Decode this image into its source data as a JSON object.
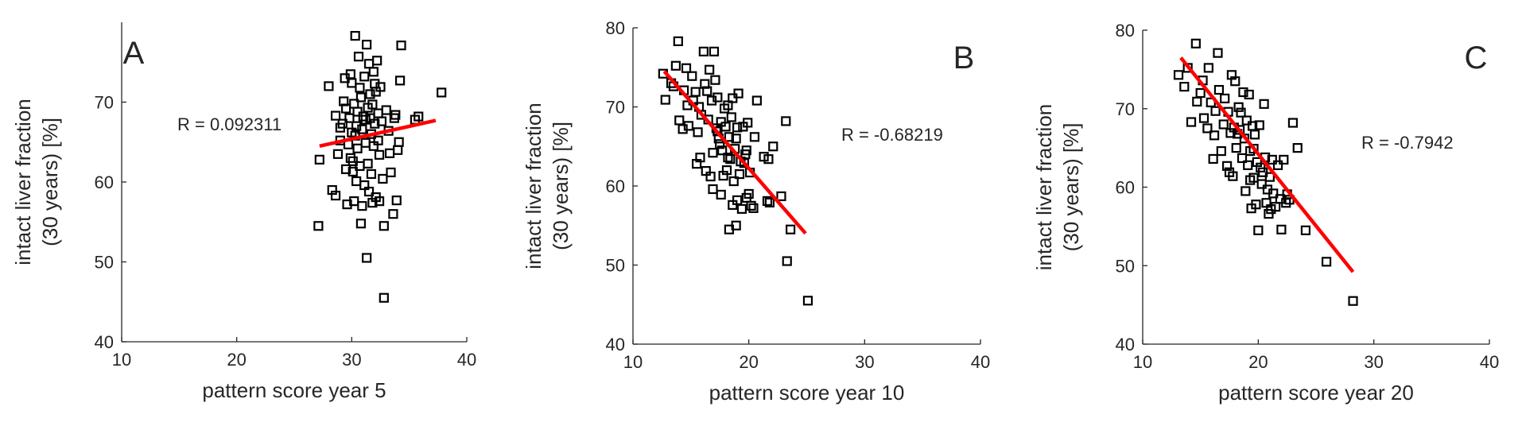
{
  "chart_data": [
    {
      "type": "scatter",
      "panel_label": "A",
      "xlabel": "pattern score year 5",
      "ylabel": [
        "intact liver fraction",
        "(30 years) [%]"
      ],
      "xlim": [
        10,
        40
      ],
      "ylim": [
        40,
        80
      ],
      "xticks": [
        10,
        20,
        30,
        40
      ],
      "yticks": [
        40,
        50,
        60,
        70
      ],
      "annotation": "R = 0.092311",
      "fit_line": [
        [
          27.2,
          64.5
        ],
        [
          37.3,
          67.7
        ]
      ],
      "points": [
        [
          27.1,
          54.5
        ],
        [
          27.2,
          62.8
        ],
        [
          28.0,
          72.0
        ],
        [
          28.3,
          59.0
        ],
        [
          28.6,
          58.3
        ],
        [
          28.6,
          68.3
        ],
        [
          28.8,
          63.5
        ],
        [
          29.0,
          65.2
        ],
        [
          29.0,
          66.8
        ],
        [
          29.2,
          67.3
        ],
        [
          29.3,
          70.1
        ],
        [
          29.4,
          73.0
        ],
        [
          29.5,
          69.2
        ],
        [
          29.5,
          61.6
        ],
        [
          29.6,
          57.2
        ],
        [
          29.7,
          64.7
        ],
        [
          29.8,
          68.0
        ],
        [
          29.9,
          63.0
        ],
        [
          29.9,
          73.5
        ],
        [
          30.0,
          72.4
        ],
        [
          30.0,
          66.2
        ],
        [
          30.1,
          61.3
        ],
        [
          30.1,
          62.6
        ],
        [
          30.2,
          57.6
        ],
        [
          30.2,
          69.8
        ],
        [
          30.3,
          65.8
        ],
        [
          30.3,
          78.3
        ],
        [
          30.4,
          67.0
        ],
        [
          30.4,
          60.1
        ],
        [
          30.5,
          68.8
        ],
        [
          30.5,
          64.2
        ],
        [
          30.6,
          75.7
        ],
        [
          30.7,
          71.8
        ],
        [
          30.7,
          62.0
        ],
        [
          30.8,
          70.6
        ],
        [
          30.8,
          54.8
        ],
        [
          30.9,
          66.6
        ],
        [
          30.9,
          57.0
        ],
        [
          31.0,
          68.2
        ],
        [
          31.1,
          73.2
        ],
        [
          31.1,
          59.6
        ],
        [
          31.2,
          67.8
        ],
        [
          31.2,
          64.9
        ],
        [
          31.3,
          77.2
        ],
        [
          31.3,
          50.5
        ],
        [
          31.4,
          69.3
        ],
        [
          31.4,
          62.3
        ],
        [
          31.5,
          74.8
        ],
        [
          31.5,
          58.8
        ],
        [
          31.6,
          68.0
        ],
        [
          31.6,
          71.0
        ],
        [
          31.7,
          61.0
        ],
        [
          31.7,
          66.0
        ],
        [
          31.8,
          57.4
        ],
        [
          31.8,
          69.7
        ],
        [
          31.9,
          73.8
        ],
        [
          31.9,
          64.5
        ],
        [
          32.0,
          72.3
        ],
        [
          32.0,
          67.3
        ],
        [
          32.1,
          58.1
        ],
        [
          32.1,
          71.3
        ],
        [
          32.2,
          75.2
        ],
        [
          32.3,
          65.2
        ],
        [
          32.3,
          68.6
        ],
        [
          32.4,
          63.4
        ],
        [
          32.4,
          57.6
        ],
        [
          32.5,
          71.9
        ],
        [
          32.6,
          67.6
        ],
        [
          32.7,
          60.4
        ],
        [
          32.8,
          54.5
        ],
        [
          32.8,
          45.5
        ],
        [
          33.0,
          69.0
        ],
        [
          33.2,
          66.4
        ],
        [
          33.3,
          63.6
        ],
        [
          33.4,
          61.2
        ],
        [
          33.6,
          56.0
        ],
        [
          33.7,
          68.0
        ],
        [
          33.8,
          68.4
        ],
        [
          33.9,
          57.7
        ],
        [
          34.0,
          64.0
        ],
        [
          34.1,
          65.0
        ],
        [
          34.2,
          72.7
        ],
        [
          34.3,
          77.1
        ],
        [
          35.5,
          67.8
        ],
        [
          35.8,
          68.2
        ],
        [
          37.8,
          71.2
        ]
      ]
    },
    {
      "type": "scatter",
      "panel_label": "B",
      "xlabel": "pattern score year 10",
      "ylabel": [
        "intact liver fraction",
        "(30 years) [%]"
      ],
      "xlim": [
        10,
        40
      ],
      "ylim": [
        40,
        80
      ],
      "xticks": [
        10,
        20,
        30,
        40
      ],
      "yticks": [
        40,
        50,
        60,
        70,
        80
      ],
      "annotation": "R = -0.68219",
      "fit_line": [
        [
          12.7,
          74.5
        ],
        [
          24.9,
          54.0
        ]
      ],
      "points": [
        [
          12.6,
          74.2
        ],
        [
          12.8,
          70.9
        ],
        [
          13.3,
          73.0
        ],
        [
          13.5,
          72.6
        ],
        [
          13.7,
          75.2
        ],
        [
          13.9,
          78.3
        ],
        [
          14.0,
          68.3
        ],
        [
          14.3,
          67.2
        ],
        [
          14.4,
          72.1
        ],
        [
          14.6,
          74.9
        ],
        [
          14.8,
          67.6
        ],
        [
          15.1,
          73.9
        ],
        [
          15.2,
          70.8
        ],
        [
          15.4,
          71.9
        ],
        [
          15.5,
          62.8
        ],
        [
          15.7,
          70.0
        ],
        [
          15.8,
          63.6
        ],
        [
          15.9,
          69.0
        ],
        [
          16.1,
          77.0
        ],
        [
          16.2,
          72.9
        ],
        [
          16.4,
          72.0
        ],
        [
          16.5,
          68.4
        ],
        [
          16.6,
          74.7
        ],
        [
          16.7,
          61.2
        ],
        [
          16.8,
          70.8
        ],
        [
          16.9,
          59.6
        ],
        [
          17.0,
          77.0
        ],
        [
          17.1,
          73.4
        ],
        [
          17.2,
          67.3
        ],
        [
          17.3,
          71.2
        ],
        [
          17.4,
          66.0
        ],
        [
          17.5,
          65.3
        ],
        [
          17.6,
          68.1
        ],
        [
          17.7,
          64.5
        ],
        [
          17.8,
          61.3
        ],
        [
          17.9,
          69.8
        ],
        [
          18.0,
          67.5
        ],
        [
          18.1,
          62.0
        ],
        [
          18.2,
          70.2
        ],
        [
          18.3,
          54.5
        ],
        [
          18.3,
          66.2
        ],
        [
          18.4,
          63.4
        ],
        [
          18.5,
          68.7
        ],
        [
          18.6,
          71.1
        ],
        [
          18.6,
          57.6
        ],
        [
          18.7,
          60.6
        ],
        [
          18.8,
          64.7
        ],
        [
          18.9,
          55.0
        ],
        [
          19.0,
          67.4
        ],
        [
          19.0,
          58.2
        ],
        [
          19.1,
          71.7
        ],
        [
          19.2,
          61.5
        ],
        [
          19.3,
          63.1
        ],
        [
          19.4,
          57.1
        ],
        [
          19.5,
          67.5
        ],
        [
          19.6,
          62.9
        ],
        [
          19.7,
          64.0
        ],
        [
          19.8,
          58.5
        ],
        [
          19.9,
          68.0
        ],
        [
          20.0,
          59.0
        ],
        [
          20.1,
          61.7
        ],
        [
          20.2,
          57.5
        ],
        [
          20.4,
          57.2
        ],
        [
          20.5,
          66.2
        ],
        [
          20.7,
          70.8
        ],
        [
          21.3,
          63.7
        ],
        [
          21.6,
          58.1
        ],
        [
          21.7,
          63.4
        ],
        [
          21.8,
          57.9
        ],
        [
          22.1,
          65.0
        ],
        [
          22.8,
          58.7
        ],
        [
          23.2,
          68.2
        ],
        [
          23.3,
          50.5
        ],
        [
          23.6,
          54.5
        ],
        [
          25.1,
          45.5
        ],
        [
          16.3,
          61.9
        ],
        [
          17.3,
          66.9
        ],
        [
          18.9,
          66.0
        ],
        [
          19.8,
          64.5
        ],
        [
          14.7,
          70.2
        ],
        [
          15.6,
          66.8
        ],
        [
          16.9,
          64.2
        ],
        [
          18.2,
          63.6
        ],
        [
          17.6,
          58.9
        ]
      ]
    },
    {
      "type": "scatter",
      "panel_label": "C",
      "xlabel": "pattern score year 20",
      "ylabel": [
        "intact liver fraction",
        "(30 years) [%]"
      ],
      "xlim": [
        10,
        40
      ],
      "ylim": [
        40,
        80
      ],
      "xticks": [
        10,
        20,
        30,
        40
      ],
      "yticks": [
        40,
        50,
        60,
        70,
        80
      ],
      "annotation": "R = -0.7942",
      "fit_line": [
        [
          13.3,
          76.5
        ],
        [
          28.2,
          49.2
        ]
      ],
      "points": [
        [
          13.1,
          74.3
        ],
        [
          13.6,
          72.8
        ],
        [
          13.9,
          75.2
        ],
        [
          14.2,
          68.3
        ],
        [
          14.6,
          78.3
        ],
        [
          14.7,
          70.9
        ],
        [
          15.0,
          72.0
        ],
        [
          15.2,
          73.6
        ],
        [
          15.6,
          67.5
        ],
        [
          15.7,
          75.2
        ],
        [
          15.9,
          70.8
        ],
        [
          16.1,
          63.6
        ],
        [
          16.3,
          69.7
        ],
        [
          16.5,
          77.1
        ],
        [
          16.6,
          72.4
        ],
        [
          16.8,
          64.6
        ],
        [
          17.0,
          68.0
        ],
        [
          17.1,
          71.3
        ],
        [
          17.3,
          62.7
        ],
        [
          17.4,
          69.6
        ],
        [
          17.6,
          66.9
        ],
        [
          17.7,
          74.3
        ],
        [
          17.8,
          61.4
        ],
        [
          17.9,
          67.6
        ],
        [
          18.0,
          73.5
        ],
        [
          18.1,
          65.0
        ],
        [
          18.3,
          70.2
        ],
        [
          18.4,
          67.3
        ],
        [
          18.6,
          63.7
        ],
        [
          18.7,
          72.1
        ],
        [
          18.8,
          66.2
        ],
        [
          18.9,
          59.5
        ],
        [
          19.0,
          68.5
        ],
        [
          19.1,
          62.8
        ],
        [
          19.2,
          71.8
        ],
        [
          19.3,
          64.6
        ],
        [
          19.4,
          57.3
        ],
        [
          19.5,
          67.8
        ],
        [
          19.6,
          61.2
        ],
        [
          19.7,
          66.7
        ],
        [
          19.8,
          57.8
        ],
        [
          19.9,
          63.2
        ],
        [
          20.0,
          54.5
        ],
        [
          20.1,
          67.9
        ],
        [
          20.2,
          62.5
        ],
        [
          20.3,
          60.4
        ],
        [
          20.5,
          70.6
        ],
        [
          20.6,
          63.8
        ],
        [
          20.7,
          58.0
        ],
        [
          20.9,
          56.6
        ],
        [
          21.0,
          61.3
        ],
        [
          21.2,
          63.5
        ],
        [
          21.3,
          59.2
        ],
        [
          21.5,
          57.5
        ],
        [
          21.7,
          62.8
        ],
        [
          21.9,
          58.5
        ],
        [
          22.0,
          54.6
        ],
        [
          22.2,
          63.5
        ],
        [
          22.4,
          58.0
        ],
        [
          22.7,
          58.4
        ],
        [
          23.0,
          68.2
        ],
        [
          23.4,
          65.0
        ],
        [
          24.1,
          54.5
        ],
        [
          25.9,
          50.5
        ],
        [
          28.2,
          45.5
        ],
        [
          16.2,
          66.6
        ],
        [
          17.5,
          61.9
        ],
        [
          18.5,
          69.5
        ],
        [
          19.6,
          64.9
        ],
        [
          20.4,
          61.9
        ],
        [
          21.1,
          57.2
        ],
        [
          15.3,
          68.8
        ],
        [
          18.2,
          66.8
        ],
        [
          19.3,
          60.9
        ],
        [
          20.8,
          59.7
        ],
        [
          22.5,
          59.1
        ]
      ]
    }
  ]
}
